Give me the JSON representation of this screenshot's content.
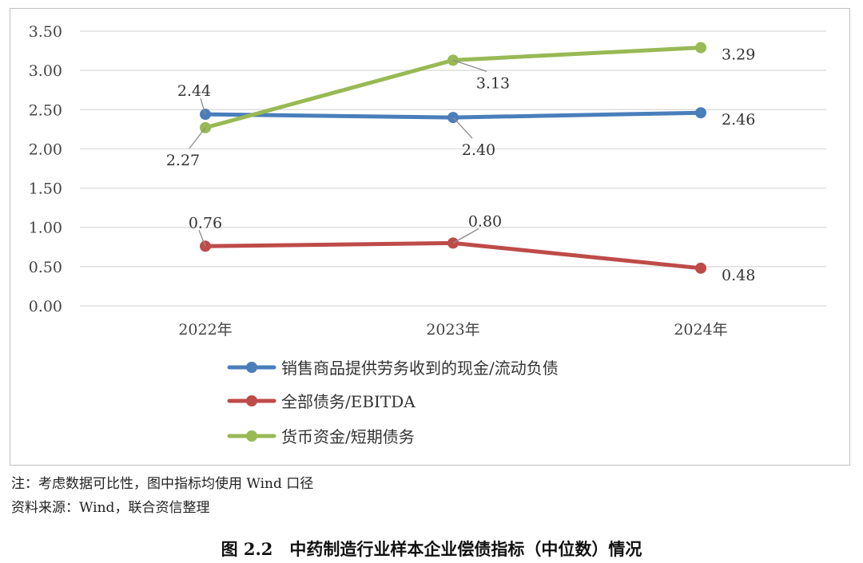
{
  "chart_data": {
    "type": "line",
    "categories": [
      "2022年",
      "2023年",
      "2024年"
    ],
    "ylim": [
      0,
      3.5
    ],
    "yticks": [
      "0.00",
      "0.50",
      "1.00",
      "1.50",
      "2.00",
      "2.50",
      "3.00",
      "3.50"
    ],
    "grid": true,
    "legend_position": "bottom",
    "series": [
      {
        "name": "销售商品提供劳务收到的现金/流动负债",
        "color": "#4a7ebb",
        "values": [
          2.44,
          2.4,
          2.46
        ],
        "labels": [
          "2.44",
          "2.40",
          "2.46"
        ]
      },
      {
        "name": "全部债务/EBITDA",
        "color": "#be4b48",
        "values": [
          0.76,
          0.8,
          0.48
        ],
        "labels": [
          "0.76",
          "0.80",
          "0.48"
        ]
      },
      {
        "name": "货币资金/短期债务",
        "color": "#98b954",
        "values": [
          2.27,
          3.13,
          3.29
        ],
        "labels": [
          "2.27",
          "3.13",
          "3.29"
        ]
      }
    ]
  },
  "notes": {
    "note": "注：考虑数据可比性，图中指标均使用 Wind 口径",
    "source": "资料来源：Wind，联合资信整理"
  },
  "caption": "图 2.2　中药制造行业样本企业偿债指标（中位数）情况"
}
